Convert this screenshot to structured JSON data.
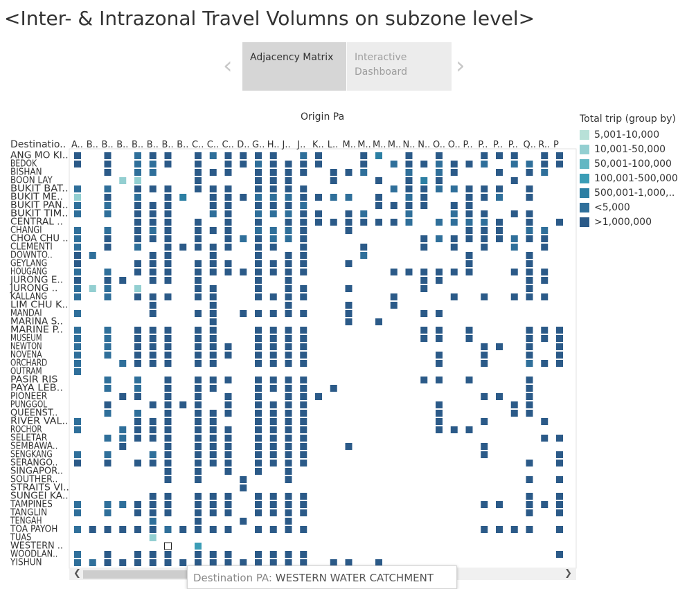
{
  "title": "<Inter- & Intrazonal Travel Volumns on subzone level>",
  "navigation": {
    "prev_icon": "chevron-left-icon",
    "next_icon": "chevron-right-icon",
    "tabs": [
      {
        "label": "Adjacency Matrix",
        "selected": true
      },
      {
        "label": "Interactive Dashboard",
        "selected": false
      }
    ]
  },
  "chart_data": {
    "type": "heatmap",
    "column_header_title": "Origin Pa",
    "row_header_title": "Destinatio..",
    "x_labels": [
      "A..",
      "B..",
      "B..",
      "B..",
      "B..",
      "B..",
      "B..",
      "B..",
      "C..",
      "C..",
      "C..",
      "D..",
      "G..",
      "H..",
      "J..",
      "J..",
      "K..",
      "L..",
      "M..",
      "M..",
      "M..",
      "M..",
      "N..",
      "N..",
      "O..",
      "O..",
      "P..",
      "P..",
      "P..",
      "P..",
      "Q..",
      "R..",
      "P"
    ],
    "y_labels": [
      "ANG MO KI..",
      "BEDOK",
      "BISHAN",
      "BOON LAY",
      "BUKIT BAT..",
      "BUKIT ME..",
      "BUKIT PAN..",
      "BUKIT TIM..",
      "CENTRAL ..",
      "CHANGI",
      "CHOA CHU ..",
      "CLEMENTI",
      "DOWNTO..",
      "GEYLANG",
      "HOUGANG",
      "JURONG E..",
      "JURONG ..",
      "KALLANG",
      "LIM CHU K..",
      "MANDAI",
      "MARINA S..",
      "MARINE P..",
      "MUSEUM",
      "NEWTON",
      "NOVENA",
      "ORCHARD",
      "OUTRAM",
      "PASIR RIS",
      "PAYA LEB..",
      "PIONEER",
      "PUNGGOL",
      "QUEENST..",
      "RIVER VAL..",
      "ROCHOR",
      "SELETAR",
      "SEMBAWA..",
      "SENGKANG",
      "SERANGO..",
      "SINGAPOR..",
      "SOUTHER..",
      "STRAITS VI..",
      "SUNGEI KA..",
      "TAMPINES",
      "TANGLIN",
      "TENGAH",
      "TOA PAYOH",
      "TUAS",
      "WESTERN ..",
      "WOODLAN..",
      "YISHUN"
    ],
    "cell_coding": "0 = no trip; 1..6 = index into legend.categories",
    "cells": [
      "606056606566660560064060600666066",
      "606055606066566660060566566505566",
      "006055006660666606650050560060650",
      "000110006000666006006064600006000",
      "505066606660666600000566556660600",
      "106050640666555665506056006650600",
      "505066600660666500006666066000000",
      "505066600560555660650050056606600",
      "000066606060606666666650555560606",
      "505065606660555600600000006660550",
      "506066606065655600000006566665660",
      "506050666660660600060006060605060",
      "650006600600606600050000006000600",
      "600066606660666600600000006000600",
      "505066606666666600000666666006660",
      "606606606000606000000006600000660",
      "515010006600606600600006000000600",
      "505066606600666600000600060606660",
      "000006000600006000600600000000000",
      "500006006606666600600006600000000",
      "000000000600000000606000000000000",
      "505066606600666600000006606000666",
      "505066606600666600000006606000666",
      "505066606660666600000000000660606",
      "505066606660666600000000600600606",
      "500566606600666600000000600600566",
      "500000000000000000000000000000000",
      "005050606660666600000006606000600",
      "005050606600666606000000000000600",
      "000660606060606660000000000660600",
      "006006666060666600000000600006600",
      "005050606660666600000000600006600",
      "500066606600666600000000600600060",
      "500566606660666600000000666000000",
      "005566606660666600000000000000066",
      "000600606660666600600000000600000",
      "505005606660666600000000000600006",
      "606066606660666600000000000000606",
      "000000606060606000000000000000000",
      "000000606006006000000000000000606",
      "000000000006000000000000000000000",
      "000006606660666600000000000000606",
      "505566606660666600000000000660666",
      "505066606660666600000000000000606",
      "000005006006006000000000000000000",
      "566666566660666600000000000666606",
      "000001000000000000000000000000000",
      "000000003000000000000000000000000",
      "506066606660666600000000000000006",
      "556666666666666606606000000000000"
    ],
    "highlighted_cell": {
      "row": "WESTERN ..",
      "col": 6
    }
  },
  "legend": {
    "title": "Total trip (group by)",
    "categories": [
      {
        "label": "5,001-10,000",
        "color": "#b8e1d8"
      },
      {
        "label": "10,001-50,000",
        "color": "#93cfd1"
      },
      {
        "label": "50,001-100,000",
        "color": "#62b7c3"
      },
      {
        "label": "100,001-500,000",
        "color": "#3b9db6"
      },
      {
        "label": "500,001-1,000,..",
        "color": "#2c7fa3"
      },
      {
        "label": "<5,000",
        "color": "#2f6f9a"
      },
      {
        "label": ">1,000,000",
        "color": "#2b5a88"
      }
    ]
  },
  "tooltip": {
    "key": "Destination PA:",
    "value": "WESTERN WATER CATCHMENT"
  },
  "scrollbar": {
    "left_icon": "scroll-left-icon",
    "right_icon": "scroll-right-icon"
  }
}
